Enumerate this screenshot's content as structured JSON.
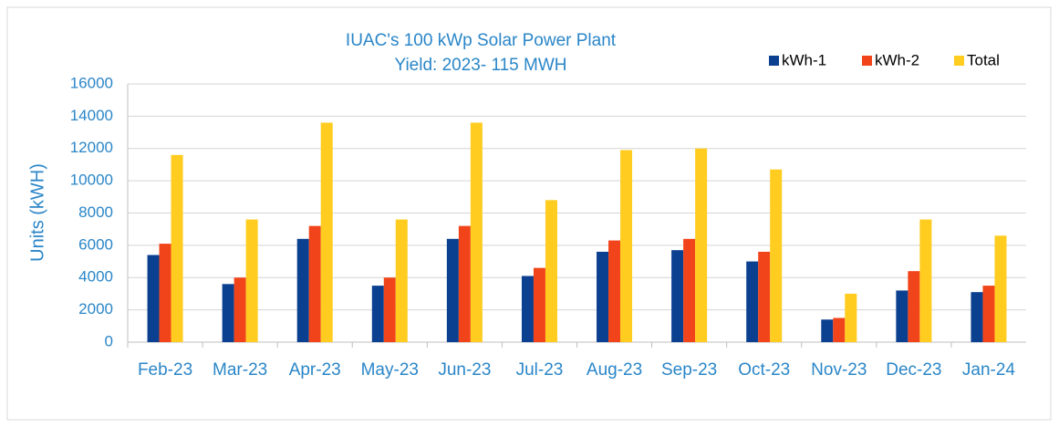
{
  "chart_data": {
    "type": "bar",
    "title": "IUAC's 100 kWp Solar Power Plant",
    "subtitle": "Yield: 2023- 115 MWH",
    "y_label": "Units (kWH)",
    "categories": [
      "Feb-23",
      "Mar-23",
      "Apr-23",
      "May-23",
      "Jun-23",
      "Jul-23",
      "Aug-23",
      "Sep-23",
      "Oct-23",
      "Nov-23",
      "Dec-23",
      "Jan-24"
    ],
    "series": [
      {
        "name": "kWh-1",
        "color": "#0b3f8f",
        "values": [
          5400,
          3600,
          6400,
          3500,
          6400,
          4100,
          5600,
          5700,
          5000,
          1400,
          3200,
          3100
        ]
      },
      {
        "name": "kWh-2",
        "color": "#f2441a",
        "values": [
          6100,
          4000,
          7200,
          4000,
          7200,
          4600,
          6300,
          6400,
          5600,
          1500,
          4400,
          3500
        ]
      },
      {
        "name": "Total",
        "color": "#ffcc1f",
        "values": [
          11600,
          7600,
          13600,
          7600,
          13600,
          8800,
          11900,
          12000,
          10700,
          3000,
          7600,
          6600
        ]
      }
    ],
    "ylim": [
      0,
      16000
    ],
    "yticks": [
      0,
      2000,
      4000,
      6000,
      8000,
      10000,
      12000,
      14000,
      16000
    ],
    "grid": true,
    "legend": "top-right"
  }
}
